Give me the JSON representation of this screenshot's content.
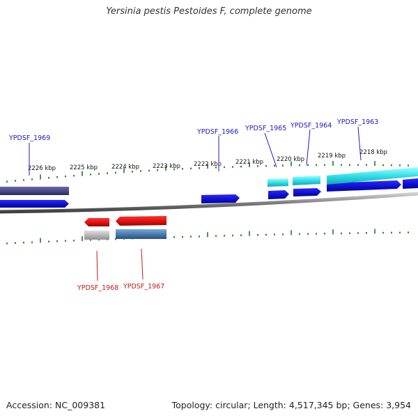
{
  "title": "Yersinia pestis Pestoides F, complete genome",
  "footer": {
    "accession": "Accession: NC_009381",
    "summary": "Topology: circular; Length: 4,517,345 bp; Genes: 3,954"
  },
  "scale": {
    "unit_suffix": " kbp",
    "ticks_kbp": [
      2226,
      2225,
      2224,
      2223,
      2222,
      2221,
      2220,
      2219,
      2218
    ]
  },
  "genes": [
    {
      "name": "YPDSF_1969",
      "strand": "+"
    },
    {
      "name": "YPDSF_1966",
      "strand": "+"
    },
    {
      "name": "YPDSF_1965",
      "strand": "+"
    },
    {
      "name": "YPDSF_1964",
      "strand": "+"
    },
    {
      "name": "YPDSF_1963",
      "strand": "+"
    },
    {
      "name": "YPDSF_1968",
      "strand": "-"
    },
    {
      "name": "YPDSF_1967",
      "strand": "-"
    }
  ],
  "colors": {
    "forward_gene": "#1010d8",
    "reverse_gene": "#e81010",
    "cyan_feature": "#30e0e8",
    "purple_feature": "#4a4a88",
    "grey_feature": "#b8b8b8",
    "steel_feature": "#4a7eb0",
    "backbone": "#808080",
    "tick": "#1a7a1a",
    "forward_label": "#1a1ac0",
    "reverse_label": "#c01818"
  }
}
